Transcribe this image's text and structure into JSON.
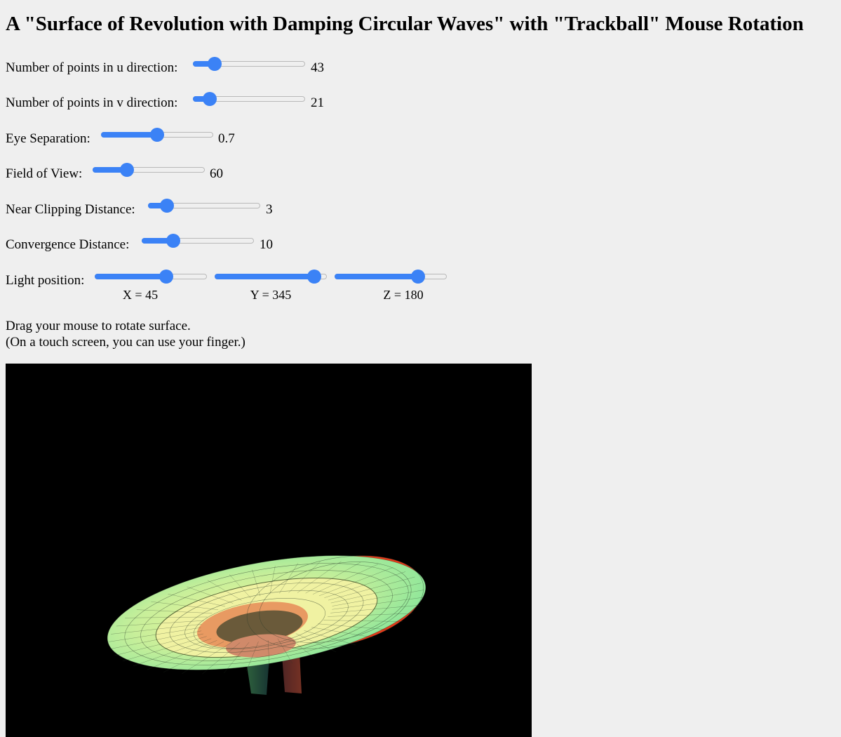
{
  "title": "A \"Surface of Revolution with Damping Circular Waves\" with \"Trackball\" Mouse Rotation",
  "controls": {
    "u_points": {
      "label": "Number of points in u direction:",
      "value": "43",
      "fraction": 0.15
    },
    "v_points": {
      "label": "Number of points in v direction:",
      "value": "21",
      "fraction": 0.1
    },
    "eye_sep": {
      "label": "Eye Separation:",
      "value": "0.7",
      "fraction": 0.5
    },
    "fov": {
      "label": "Field of View:",
      "value": "60",
      "fraction": 0.28
    },
    "near": {
      "label": "Near Clipping Distance:",
      "value": "3",
      "fraction": 0.12
    },
    "convergence": {
      "label": "Convergence Distance:",
      "value": "10",
      "fraction": 0.25
    },
    "light": {
      "label": "Light position:",
      "x": {
        "label": "X = 45",
        "fraction": 0.66
      },
      "y": {
        "label": "Y = 345",
        "fraction": 0.94
      },
      "z": {
        "label": "Z = 180",
        "fraction": 0.78
      }
    }
  },
  "instructions": {
    "line1": "Drag your mouse to rotate surface.",
    "line2": "(On a touch screen, you can use your finger.)"
  },
  "colors": {
    "accent": "#3b82f6",
    "canvas_bg": "#000000",
    "surface_green": "#8ee69a",
    "surface_yellow": "#e9f29a",
    "surface_orange": "#e89a62",
    "surface_red": "#e33a1a"
  }
}
